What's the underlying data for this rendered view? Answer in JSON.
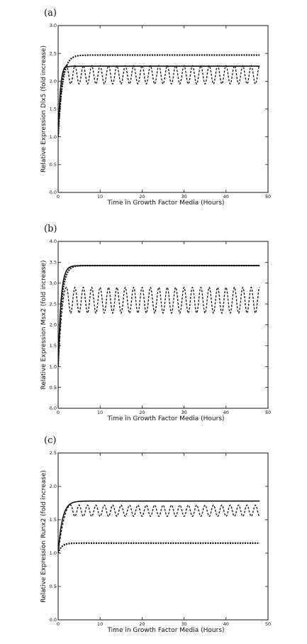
{
  "chart_data": [
    {
      "type": "line",
      "panel_label": "(a)",
      "xlabel": "Time in Growth Factor Media (Hours)",
      "ylabel": "Relative Expression Dlx5 (fold increase)",
      "xlim": [
        0,
        50
      ],
      "ylim": [
        0.0,
        3.0
      ],
      "xticks": [
        "0",
        "10",
        "20",
        "30",
        "40",
        "50"
      ],
      "yticks": [
        "0.0",
        "0.5",
        "1.0",
        "1.5",
        "2.0",
        "2.5",
        "3.0"
      ],
      "grid": false,
      "series": [
        {
          "style": "solid",
          "start": 1.0,
          "steady": 2.27,
          "rise_time": 1.5,
          "overshoot": 2.3,
          "x_end": 48
        },
        {
          "style": "dash-dot",
          "start": 1.0,
          "steady": 2.47,
          "rise_time": 3.0,
          "x_end": 48
        },
        {
          "style": "dashed",
          "start": 1.0,
          "oscillation": {
            "min": 1.95,
            "max": 2.28,
            "period": 2.0,
            "start_time": 2.0
          },
          "x_end": 48
        }
      ]
    },
    {
      "type": "line",
      "panel_label": "(b)",
      "xlabel": "Time in Growth Factor Media (Hours)",
      "ylabel": "Relative Expression Msx2 (fold increase)",
      "xlim": [
        0,
        50
      ],
      "ylim": [
        0.0,
        4.0
      ],
      "xticks": [
        "0",
        "10",
        "20",
        "30",
        "40",
        "50"
      ],
      "yticks": [
        "0.0",
        "0.5",
        "1.0",
        "1.5",
        "2.0",
        "2.5",
        "3.0",
        "3.5",
        "4.0"
      ],
      "grid": false,
      "series": [
        {
          "style": "solid",
          "start": 1.0,
          "steady": 3.42,
          "rise_time": 2.0,
          "x_end": 48
        },
        {
          "style": "dash-dot",
          "start": 1.0,
          "steady": 3.42,
          "rise_time": 2.5,
          "x_end": 48
        },
        {
          "style": "dashed",
          "start": 1.0,
          "oscillation": {
            "min": 2.28,
            "max": 2.9,
            "period": 2.0,
            "start_time": 2.0
          },
          "x_end": 48
        }
      ]
    },
    {
      "type": "line",
      "panel_label": "(c)",
      "xlabel": "Time in Growth Factor Media (Hours)",
      "ylabel": "Relative Expression Runx2 (fold increase)",
      "xlim": [
        0,
        50
      ],
      "ylim": [
        0.0,
        2.5
      ],
      "xticks": [
        "0",
        "10",
        "20",
        "30",
        "40",
        "50"
      ],
      "yticks": [
        "0.0",
        "0.5",
        "1.0",
        "1.5",
        "2.0",
        "2.5"
      ],
      "grid": false,
      "series": [
        {
          "style": "solid",
          "start": 1.0,
          "steady": 1.78,
          "rise_time": 3.0,
          "x_end": 48
        },
        {
          "style": "dash-dot",
          "start": 1.0,
          "steady": 1.15,
          "rise_time": 2.5,
          "x_end": 48
        },
        {
          "style": "dashed",
          "start": 1.0,
          "oscillation": {
            "min": 1.55,
            "max": 1.72,
            "period": 2.0,
            "start_time": 3.0
          },
          "x_end": 48
        }
      ]
    }
  ]
}
